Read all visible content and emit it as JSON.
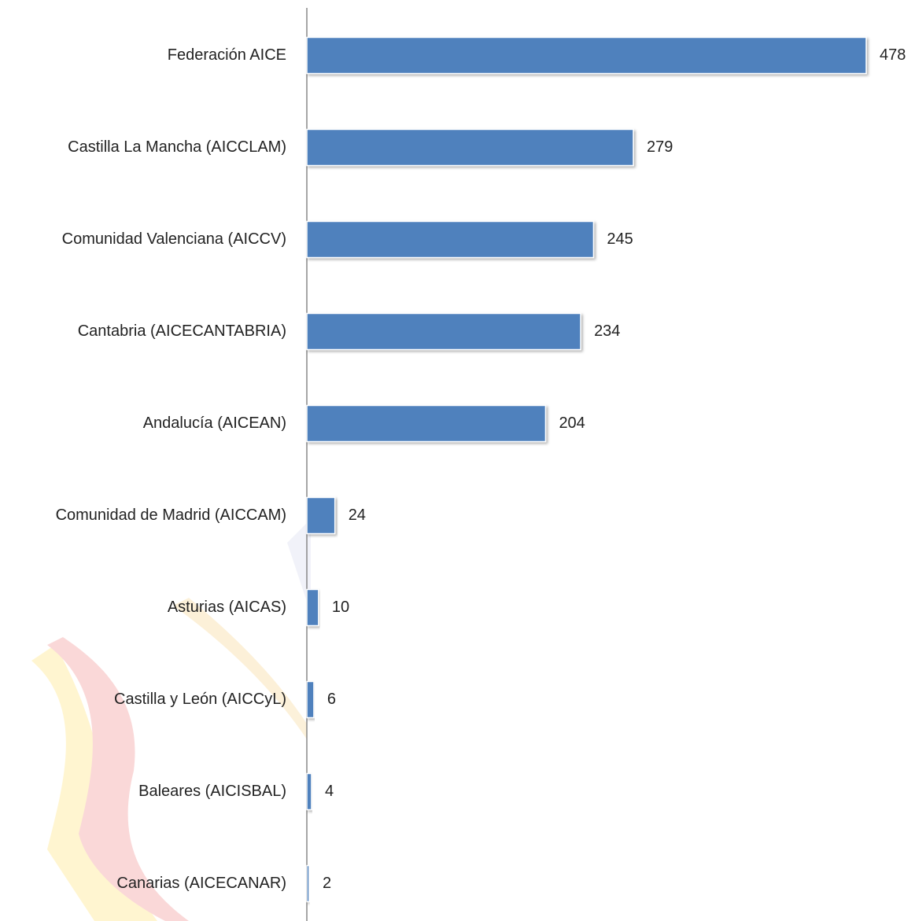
{
  "chart_data": {
    "type": "barh",
    "categories": [
      "Federación AICE",
      "Castilla La Mancha (AICCLAM)",
      "Comunidad Valenciana (AICCV)",
      "Cantabria (AICECANTABRIA)",
      "Andalucía (AICEAN)",
      "Comunidad de Madrid (AICCAM)",
      "Asturias (AICAS)",
      "Castilla y León (AICCyL)",
      "Baleares (AICISBAL)",
      "Canarias (AICECANAR)"
    ],
    "values": [
      478,
      279,
      245,
      234,
      204,
      24,
      10,
      6,
      4,
      2
    ],
    "color": "#4f81bd"
  }
}
